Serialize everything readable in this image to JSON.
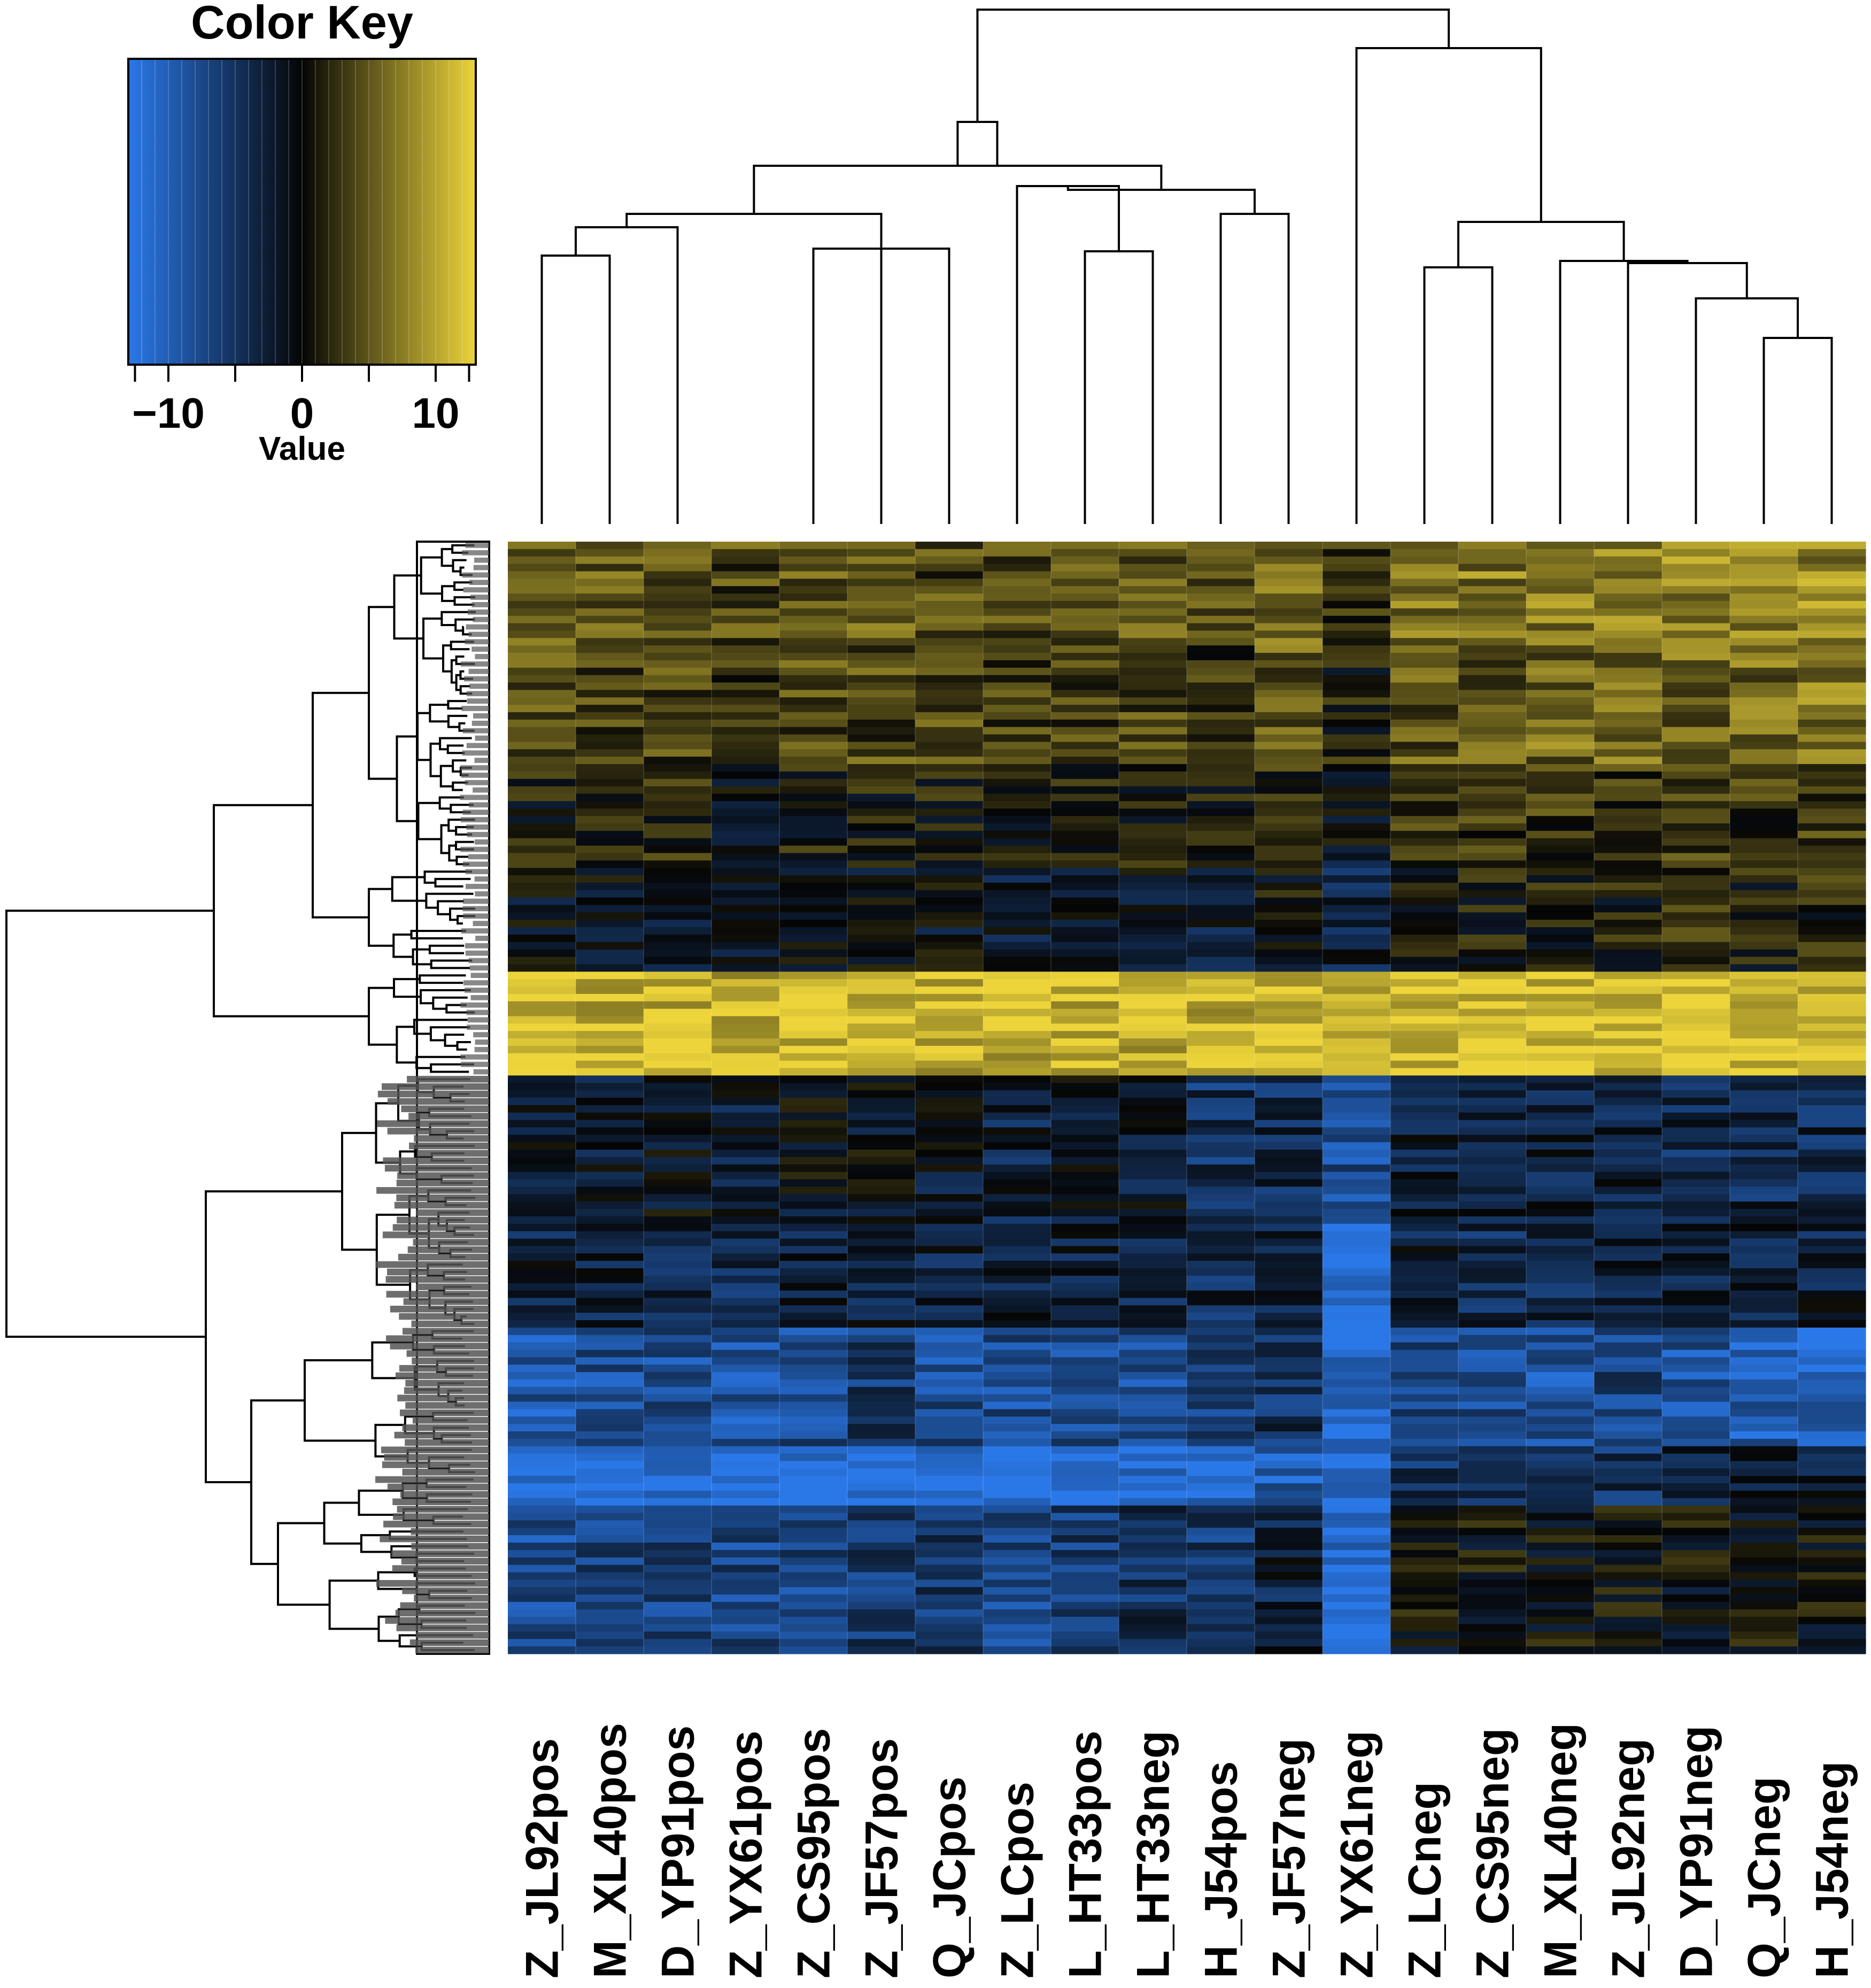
{
  "chart_data": {
    "type": "heatmap",
    "color_key": {
      "title": "Color Key",
      "xlabel": "Value",
      "range": [
        -13,
        13
      ],
      "tick_values": [
        -10,
        0,
        10
      ],
      "tick_labels": [
        "−10",
        "0",
        "10"
      ],
      "colors": {
        "low": "#2a78e8",
        "mid": "#050505",
        "high": "#ecd43a"
      }
    },
    "columns": [
      "Z_JL92pos",
      "M_XL40pos",
      "D_YP91pos",
      "Z_YX61pos",
      "Z_CS95pos",
      "Z_JF57pos",
      "Q_JCpos",
      "Z_LCpos",
      "L_HT33pos",
      "L_HT33neg",
      "H_J54pos",
      "Z_JF57neg",
      "Z_YX61neg",
      "Z_LCneg",
      "Z_CS95neg",
      "M_XL40neg",
      "Z_JL92neg",
      "D_YP91neg",
      "Q_JCneg",
      "H_J54neg"
    ],
    "row_blocks": [
      {
        "rows": 14,
        "mean": [
          6,
          5,
          5,
          4,
          5,
          5,
          4,
          4,
          5,
          5,
          4,
          6,
          3,
          7,
          7,
          7,
          7,
          8,
          8,
          8
        ]
      },
      {
        "rows": 16,
        "mean": [
          4,
          4,
          4,
          3,
          4,
          4,
          4,
          3,
          4,
          4,
          3,
          5,
          1,
          5,
          5,
          6,
          6,
          6,
          6,
          7
        ]
      },
      {
        "rows": 14,
        "mean": [
          1,
          1,
          2,
          0,
          1,
          1,
          1,
          0,
          1,
          1,
          1,
          2,
          -1,
          3,
          3,
          3,
          3,
          4,
          3,
          4
        ]
      },
      {
        "rows": 14,
        "mean": [
          -1,
          -1,
          -1,
          -2,
          -1,
          -1,
          -1,
          -2,
          -1,
          -1,
          -2,
          0,
          -3,
          1,
          1,
          1,
          1,
          2,
          1,
          2
        ]
      },
      {
        "rows": 14,
        "mean": [
          11,
          11,
          11,
          11,
          11,
          11,
          11,
          11,
          11,
          11,
          11,
          12,
          10,
          12,
          12,
          12,
          12,
          12,
          12,
          12
        ]
      },
      {
        "rows": 20,
        "mean": [
          -2,
          -2,
          -1,
          -2,
          -1,
          -1,
          -2,
          -3,
          -2,
          -2,
          -5,
          -4,
          -8,
          -3,
          -3,
          -3,
          -3,
          -4,
          -4,
          -4
        ]
      },
      {
        "rows": 14,
        "mean": [
          -3,
          -3,
          -3,
          -4,
          -3,
          -3,
          -3,
          -3,
          -3,
          -3,
          -4,
          -3,
          -12,
          -3,
          -4,
          -4,
          -3,
          -3,
          -3,
          -3
        ]
      },
      {
        "rows": 16,
        "mean": [
          -9,
          -8,
          -8,
          -9,
          -8,
          -6,
          -8,
          -8,
          -8,
          -8,
          -7,
          -5,
          -12,
          -7,
          -8,
          -9,
          -7,
          -9,
          -10,
          -11
        ]
      },
      {
        "rows": 8,
        "mean": [
          -13,
          -13,
          -13,
          -13,
          -13,
          -13,
          -13,
          -13,
          -13,
          -12,
          -12,
          -10,
          -12,
          -5,
          -5,
          -4,
          -5,
          -3,
          -3,
          -3
        ]
      },
      {
        "rows": 20,
        "mean": [
          -8,
          -7,
          -7,
          -7,
          -7,
          -6,
          -6,
          -7,
          -6,
          -5,
          -6,
          -3,
          -12,
          0,
          0,
          0,
          0,
          0,
          0,
          0
        ]
      }
    ]
  }
}
